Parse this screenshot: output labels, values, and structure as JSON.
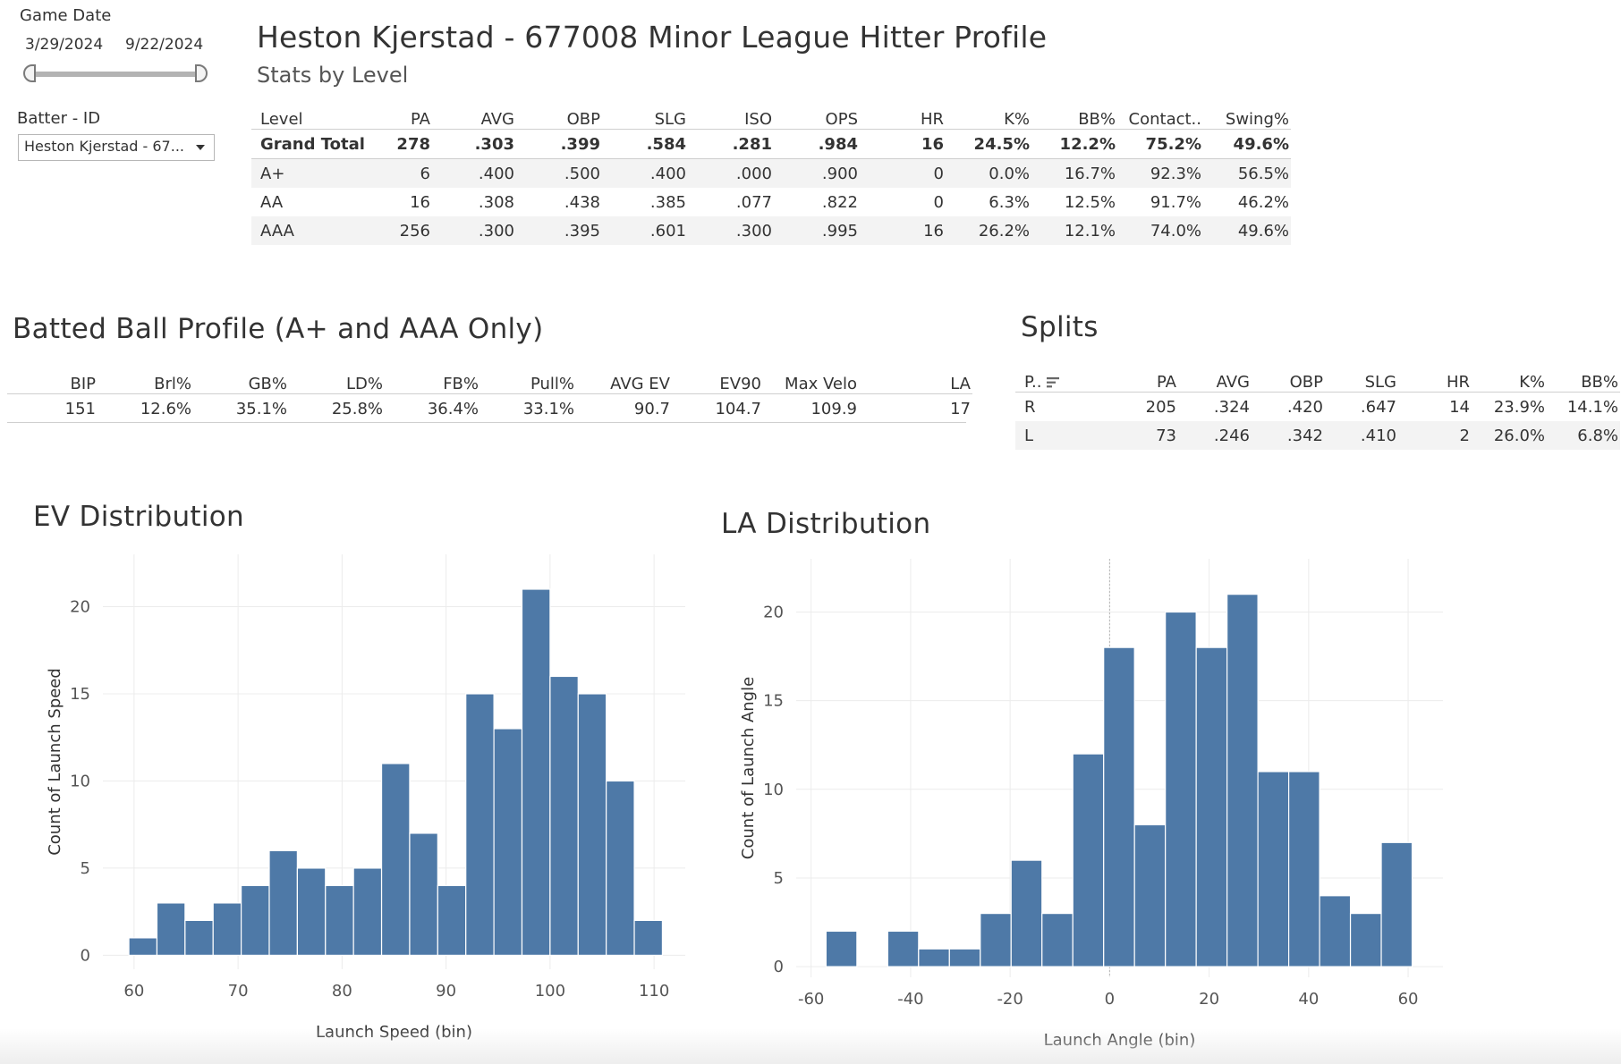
{
  "filters": {
    "game_date": {
      "title": "Game Date",
      "start": "3/29/2024",
      "end": "9/22/2024"
    },
    "batter": {
      "title": "Batter - ID",
      "selected": "Heston Kjerstad - 67..."
    }
  },
  "header": {
    "title": "Heston Kjerstad - 677008 Minor League Hitter Profile",
    "subtitle": "Stats by Level"
  },
  "level_table": {
    "columns": [
      "Level",
      "PA",
      "AVG",
      "OBP",
      "SLG",
      "ISO",
      "OPS",
      "HR",
      "K%",
      "BB%",
      "Contact..",
      "Swing%"
    ],
    "rows": [
      [
        "Grand Total",
        "278",
        ".303",
        ".399",
        ".584",
        ".281",
        ".984",
        "16",
        "24.5%",
        "12.2%",
        "75.2%",
        "49.6%"
      ],
      [
        "A+",
        "6",
        ".400",
        ".500",
        ".400",
        ".000",
        ".900",
        "0",
        "0.0%",
        "16.7%",
        "92.3%",
        "56.5%"
      ],
      [
        "AA",
        "16",
        ".308",
        ".438",
        ".385",
        ".077",
        ".822",
        "0",
        "6.3%",
        "12.5%",
        "91.7%",
        "46.2%"
      ],
      [
        "AAA",
        "256",
        ".300",
        ".395",
        ".601",
        ".300",
        ".995",
        "16",
        "26.2%",
        "12.1%",
        "74.0%",
        "49.6%"
      ]
    ]
  },
  "batted_ball": {
    "title": "Batted Ball Profile (A+ and AAA Only)",
    "columns": [
      "BIP",
      "Brl%",
      "GB%",
      "LD%",
      "FB%",
      "Pull%",
      "AVG EV",
      "EV90",
      "Max Velo",
      "LA"
    ],
    "rows": [
      [
        "151",
        "12.6%",
        "35.1%",
        "25.8%",
        "36.4%",
        "33.1%",
        "90.7",
        "104.7",
        "109.9",
        "17"
      ]
    ]
  },
  "splits": {
    "title": "Splits",
    "columns": [
      "P..",
      "PA",
      "AVG",
      "OBP",
      "SLG",
      "HR",
      "K%",
      "BB%"
    ],
    "rows": [
      [
        "R",
        "205",
        ".324",
        ".420",
        ".647",
        "14",
        "23.9%",
        "14.1%"
      ],
      [
        "L",
        "73",
        ".246",
        ".342",
        ".410",
        "2",
        "26.0%",
        "6.8%"
      ]
    ]
  },
  "chart_data": [
    {
      "type": "bar",
      "title": "EV Distribution",
      "xlabel": "Launch Speed (bin)",
      "ylabel": "Count of Launch Speed",
      "bin_width": 2.7,
      "bin_starts": [
        59.5,
        62.2,
        64.9,
        67.6,
        70.3,
        73.0,
        75.7,
        78.4,
        81.1,
        83.8,
        86.5,
        89.2,
        91.9,
        94.6,
        97.3,
        100.0,
        102.7,
        105.4,
        108.1
      ],
      "values": [
        1,
        3,
        2,
        3,
        4,
        6,
        5,
        4,
        5,
        11,
        7,
        4,
        15,
        13,
        21,
        16,
        15,
        10,
        2
      ],
      "xlim": [
        57,
        113
      ],
      "ylim": [
        -0.8,
        23
      ],
      "xticks": [
        60,
        70,
        80,
        90,
        100,
        110
      ],
      "yticks": [
        0,
        5,
        10,
        15,
        20
      ],
      "grid": true,
      "bar_color": "#4e79a7"
    },
    {
      "type": "bar",
      "title": "LA Distribution",
      "xlabel": "Launch Angle (bin)",
      "ylabel": "Count of Launch Angle",
      "bin_width": 6.2,
      "bin_starts": [
        -57.0,
        -50.8,
        -44.6,
        -38.4,
        -32.2,
        -26.0,
        -19.8,
        -13.6,
        -7.4,
        -1.2,
        5.0,
        11.2,
        17.4,
        23.6,
        29.8,
        36.0,
        42.2,
        48.4,
        54.6
      ],
      "values": [
        2,
        0,
        2,
        1,
        1,
        3,
        6,
        3,
        12,
        18,
        8,
        20,
        18,
        21,
        11,
        11,
        4,
        3,
        7
      ],
      "xlim": [
        -63,
        67
      ],
      "ylim": [
        -0.6,
        23
      ],
      "xticks": [
        -60,
        -40,
        -20,
        0,
        20,
        40,
        60
      ],
      "yticks": [
        0,
        5,
        10,
        15,
        20
      ],
      "grid": true,
      "zero_line": true,
      "bar_color": "#4e79a7"
    }
  ]
}
